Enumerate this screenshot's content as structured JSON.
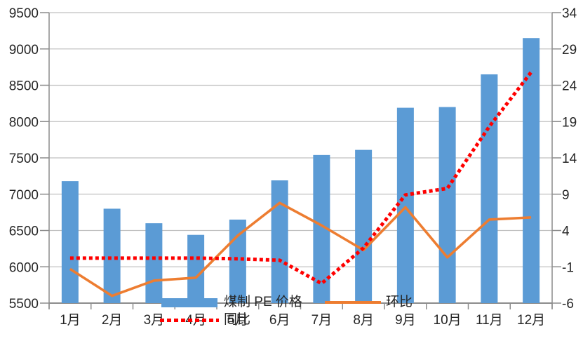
{
  "chart_data": {
    "type": "combo",
    "title": "",
    "categories": [
      "1月",
      "2月",
      "3月",
      "4月",
      "5月",
      "6月",
      "7月",
      "8月",
      "9月",
      "10月",
      "11月",
      "12月"
    ],
    "series": [
      {
        "name": "煤制PE价格",
        "type": "bar",
        "axis": "left",
        "color": "#5B9BD5",
        "values": [
          7180,
          6800,
          6600,
          6440,
          6650,
          7190,
          7540,
          7610,
          8190,
          8200,
          8650,
          9150
        ]
      },
      {
        "name": "环比",
        "type": "line",
        "style": "solid",
        "axis": "right",
        "color": "#ED7D31",
        "values": [
          -1.3,
          -5.0,
          -2.9,
          -2.5,
          3.3,
          7.8,
          4.7,
          1.3,
          7.2,
          0.3,
          5.5,
          5.8
        ]
      },
      {
        "name": "同比",
        "type": "line",
        "style": "dotted",
        "axis": "right",
        "color": "#FF0000",
        "values": [
          0.2,
          0.2,
          0.2,
          0.2,
          0.1,
          -0.1,
          -3.3,
          1.6,
          8.9,
          9.8,
          18.3,
          25.8
        ]
      }
    ],
    "left_axis": {
      "min": 5500,
      "max": 9500,
      "step": 500,
      "tick_labels": [
        "9500",
        "9000",
        "8500",
        "8000",
        "7500",
        "7000",
        "6500",
        "6000",
        "5500"
      ]
    },
    "right_axis": {
      "min": -6,
      "max": 34,
      "step": 5,
      "tick_labels": [
        "34",
        "29",
        "24",
        "19",
        "14",
        "9",
        "4",
        "-1",
        "-6"
      ]
    },
    "grid": true,
    "legend_position": "bottom-inside"
  },
  "legend": {
    "pe_price_label": "煤制 PE 价格",
    "huanbi_label": "环比",
    "tongbi_label": "同比"
  },
  "colors": {
    "bar": "#5B9BD5",
    "line_huanbi": "#ED7D31",
    "line_tongbi": "#FF0000",
    "gridline": "#C0C0C0",
    "axis": "#8C8C8C",
    "label_text": "#262626"
  }
}
